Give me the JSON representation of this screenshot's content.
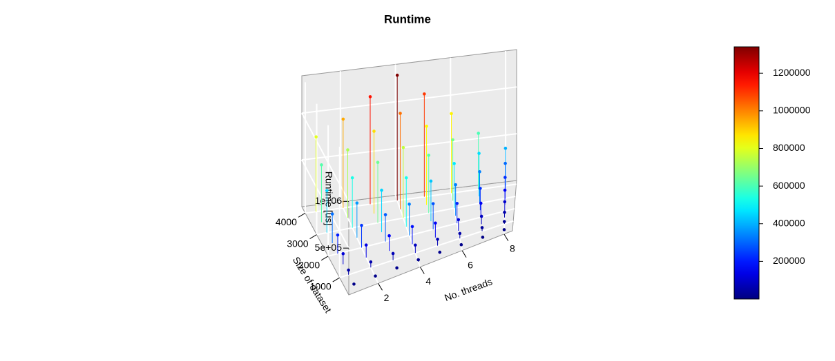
{
  "chart_data": {
    "type": "scatter3d",
    "title": "Runtime",
    "xlabel": "No. threads",
    "ylabel": "Size of dataset",
    "zlabel": "Runtime [us]",
    "x": [
      1,
      2,
      3,
      4,
      5,
      6,
      7,
      8
    ],
    "y": [
      500,
      1000,
      1500,
      2000,
      2500,
      3000,
      3500,
      4000
    ],
    "z": [
      [
        12500,
        14800,
        18000,
        20900,
        17200,
        13300,
        9400,
        6300
      ],
      [
        50000,
        59400,
        71900,
        83800,
        68800,
        53100,
        37500,
        25000
      ],
      [
        112500,
        133600,
        161700,
        188400,
        154700,
        119500,
        84400,
        56300
      ],
      [
        200000,
        237500,
        287500,
        335000,
        275000,
        212500,
        150000,
        100000
      ],
      [
        312500,
        371100,
        449200,
        523400,
        429700,
        332000,
        234400,
        156300
      ],
      [
        450000,
        534400,
        646900,
        753800,
        618800,
        478100,
        337500,
        225000
      ],
      [
        612500,
        727300,
        880500,
        1025900,
        842200,
        650800,
        459400,
        306300
      ],
      [
        800000,
        950000,
        1150000,
        1340000,
        1100000,
        850000,
        600000,
        400000
      ]
    ],
    "xlim": [
      0.6,
      8.4
    ],
    "ylim": [
      200,
      4300
    ],
    "zlim": [
      0,
      1400000
    ],
    "xticks": [
      2,
      4,
      6,
      8
    ],
    "yticks": [
      1000,
      2000,
      3000,
      4000
    ],
    "zticks": [
      {
        "value": 500000,
        "label": "5e+05"
      },
      {
        "value": 1000000,
        "label": "1e+06"
      }
    ],
    "colormap": "jet",
    "clim": [
      0,
      1340000
    ],
    "colorbar_ticks": [
      200000,
      400000,
      600000,
      800000,
      1000000,
      1200000
    ],
    "grid": true
  }
}
